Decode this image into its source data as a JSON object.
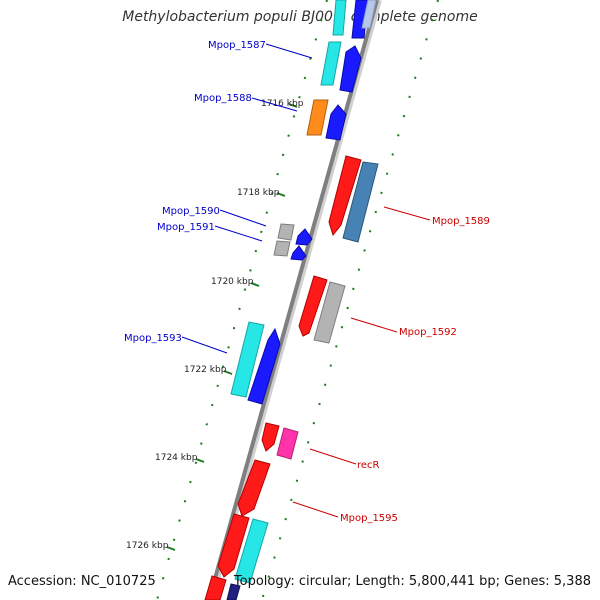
{
  "title": "Methylobacterium populi BJ001, complete genome",
  "accession": "Accession: NC_010725",
  "summary": "Topology: circular; Length: 5,800,441 bp; Genes: 5,388",
  "colors": {
    "background": "#ffffff",
    "backbone": "#7f7f7f",
    "tick": "#1f7a1f",
    "forward_label": "#0000cc",
    "reverse_label": "#cc0000",
    "red": "#ff1a1a",
    "blue": "#1a1aff",
    "cyan": "#27e6e6",
    "orange": "#ff8c1a",
    "steelblue": "#4682b4",
    "gray": "#b3b3b3",
    "pink": "#ff33aa",
    "navy": "#202080"
  },
  "ticks": [
    {
      "kbp": 1716,
      "label": "1716 kbp"
    },
    {
      "kbp": 1718,
      "label": "1718 kbp"
    },
    {
      "kbp": 1720,
      "label": "1720 kbp"
    },
    {
      "kbp": 1722,
      "label": "1722 kbp"
    },
    {
      "kbp": 1724,
      "label": "1724 kbp"
    },
    {
      "kbp": 1726,
      "label": "1726 kbp"
    }
  ],
  "labels": [
    {
      "name": "mpop-1587-label",
      "text": "Mpop_1587",
      "strand": "forward"
    },
    {
      "name": "mpop-1588-label",
      "text": "Mpop_1588",
      "strand": "forward"
    },
    {
      "name": "mpop-1590-label",
      "text": "Mpop_1590",
      "strand": "forward"
    },
    {
      "name": "mpop-1591-label",
      "text": "Mpop_1591",
      "strand": "forward"
    },
    {
      "name": "mpop-1593-label",
      "text": "Mpop_1593",
      "strand": "forward"
    },
    {
      "name": "mpop-1589-label",
      "text": "Mpop_1589",
      "strand": "reverse"
    },
    {
      "name": "mpop-1592-label",
      "text": "Mpop_1592",
      "strand": "reverse"
    },
    {
      "name": "recr-label",
      "text": "recR",
      "strand": "reverse"
    },
    {
      "name": "mpop-1595-label",
      "text": "Mpop_1595",
      "strand": "reverse"
    }
  ]
}
